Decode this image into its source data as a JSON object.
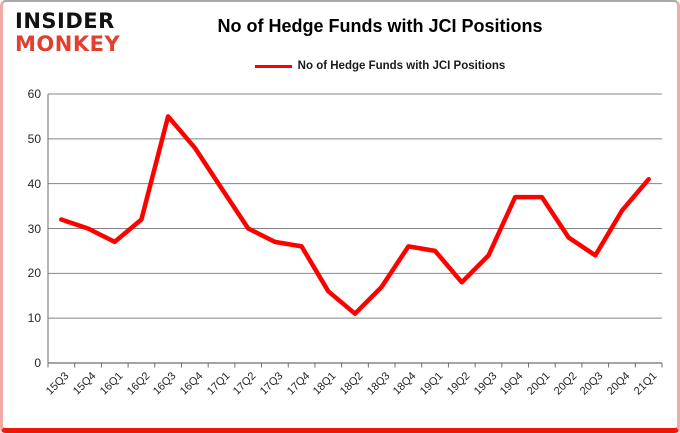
{
  "logo": {
    "line1": "INSIDER",
    "line2": "MONKEY"
  },
  "header": {
    "title": "No of Hedge Funds with JCI Positions"
  },
  "legend": {
    "label": "No of Hedge Funds with JCI Positions"
  },
  "colors": {
    "line": "#ff0000",
    "brand_red": "#e2402f",
    "grid": "#848484",
    "axis": "#6e6e6e",
    "text": "#262626",
    "frame_bottom": "#ec1609"
  },
  "chart_data": {
    "type": "line",
    "title": "No of Hedge Funds with JCI Positions",
    "categories": [
      "15Q3",
      "15Q4",
      "16Q1",
      "16Q2",
      "16Q3",
      "16Q4",
      "17Q1",
      "17Q2",
      "17Q3",
      "17Q4",
      "18Q1",
      "18Q2",
      "18Q3",
      "18Q4",
      "19Q1",
      "19Q2",
      "19Q3",
      "19Q4",
      "20Q1",
      "20Q2",
      "20Q3",
      "20Q4",
      "21Q1"
    ],
    "values": [
      32,
      30,
      27,
      32,
      55,
      48,
      39,
      30,
      27,
      26,
      16,
      11,
      17,
      26,
      25,
      18,
      24,
      37,
      37,
      28,
      24,
      34,
      41
    ],
    "series_name": "No of Hedge Funds with JCI Positions",
    "xlabel": "",
    "ylabel": "",
    "ylim": [
      0,
      60
    ],
    "yticks": [
      0,
      10,
      20,
      30,
      40,
      50,
      60
    ],
    "grid": true,
    "legend_position": "top-center",
    "line_color": "#ff0000"
  }
}
